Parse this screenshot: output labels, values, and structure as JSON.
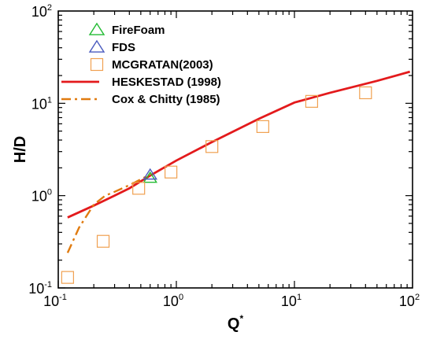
{
  "chart_data": {
    "type": "scatter",
    "xscale": "log",
    "yscale": "log",
    "xlim": [
      0.1,
      100
    ],
    "ylim": [
      0.1,
      100
    ],
    "xlabel": "Q",
    "xlabel_superscript": "*",
    "ylabel": "H/D",
    "grid": false,
    "legend_position": "top-left",
    "x_ticks": [
      {
        "base": "10",
        "exp": "-1",
        "value": 0.1
      },
      {
        "base": "10",
        "exp": "0",
        "value": 1
      },
      {
        "base": "10",
        "exp": "1",
        "value": 10
      },
      {
        "base": "10",
        "exp": "2",
        "value": 100
      }
    ],
    "y_ticks": [
      {
        "base": "10",
        "exp": "-1",
        "value": 0.1
      },
      {
        "base": "10",
        "exp": "0",
        "value": 1
      },
      {
        "base": "10",
        "exp": "1",
        "value": 10
      },
      {
        "base": "10",
        "exp": "2",
        "value": 100
      }
    ],
    "series": [
      {
        "name": "FireFoam",
        "kind": "marker",
        "marker": "triangle",
        "color": "#22bb33",
        "x": [
          0.6
        ],
        "y": [
          1.55
        ]
      },
      {
        "name": "FDS",
        "kind": "marker",
        "marker": "triangle",
        "color": "#4a5bbf",
        "x": [
          0.6
        ],
        "y": [
          1.68
        ]
      },
      {
        "name": "MCGRATAN(2003)",
        "kind": "marker",
        "marker": "square",
        "color": "#f0a050",
        "x": [
          0.12,
          0.24,
          0.48,
          0.9,
          2.0,
          5.4,
          14.0,
          40.0
        ],
        "y": [
          0.13,
          0.32,
          1.2,
          1.8,
          3.4,
          5.6,
          10.5,
          13.0
        ]
      },
      {
        "name": "HESKESTAD (1998)",
        "kind": "line",
        "dash": "solid",
        "color": "#e31a1c",
        "x": [
          0.12,
          0.2,
          0.3,
          0.4,
          0.6,
          1.0,
          2.0,
          5.0,
          10.0,
          20.0,
          50.0,
          95.0
        ],
        "y": [
          0.58,
          0.78,
          1.0,
          1.2,
          1.65,
          2.4,
          3.8,
          6.8,
          10.2,
          13.0,
          17.5,
          22.0
        ]
      },
      {
        "name": "Cox & Chitty (1985)",
        "kind": "line",
        "dash": "dashdot",
        "color": "#e07b10",
        "x": [
          0.12,
          0.15,
          0.2,
          0.25,
          0.3,
          0.4,
          0.5,
          0.6
        ],
        "y": [
          0.24,
          0.45,
          0.8,
          1.0,
          1.1,
          1.3,
          1.5,
          1.7
        ]
      }
    ]
  }
}
